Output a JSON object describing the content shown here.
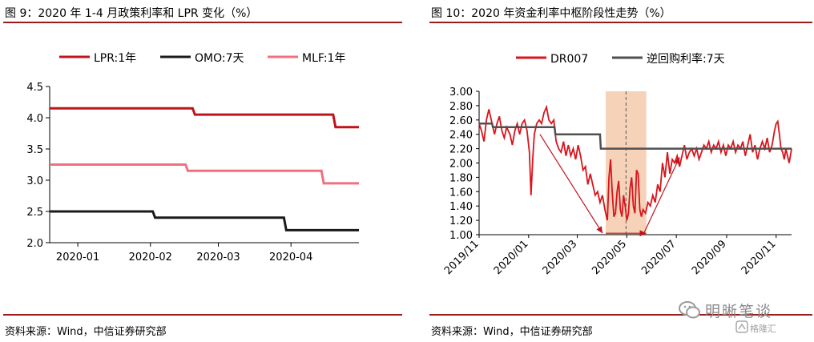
{
  "figure1": {
    "title": "图 9：2020 年 1-4 月政策利率和 LPR 变化（%）",
    "source": "资料来源：Wind，中信证券研究部"
  },
  "figure2": {
    "title": "图 10：2020 年资金利率中枢阶段性走势（%）",
    "source": "资料来源：Wind，中信证券研究部"
  },
  "watermark": {
    "name": "明晰笔谈",
    "sub": "格隆汇"
  },
  "colors": {
    "title_rule": "#9b1b1b",
    "lpr": "#c0141c",
    "omo": "#1a1a1a",
    "mlf": "#f07080",
    "dr007": "#d9141c",
    "reverse_repo": "#505050",
    "highlight": "#f6d2b8",
    "arrow": "#c0141c"
  },
  "chart_data": [
    {
      "type": "line",
      "title": "图 9：2020 年 1-4 月政策利率和 LPR 变化（%）",
      "legend_position": "top",
      "xlabel": "",
      "ylabel": "",
      "x_range": [
        "2019-12-20",
        "2020-04-30"
      ],
      "ylim": [
        2.0,
        4.5
      ],
      "yticks": [
        "2.0",
        "2.5",
        "3.0",
        "3.5",
        "4.0",
        "4.5"
      ],
      "xticks": [
        {
          "date": "2020-01-01",
          "label": "2020-01"
        },
        {
          "date": "2020-02-01",
          "label": "2020-02"
        },
        {
          "date": "2020-03-01",
          "label": "2020-03"
        },
        {
          "date": "2020-04-01",
          "label": "2020-04"
        }
      ],
      "grid": false,
      "series": [
        {
          "name": "LPR:1年",
          "color": "#c0141c",
          "points": [
            [
              "2019-12-20",
              4.15
            ],
            [
              "2020-02-19",
              4.15
            ],
            [
              "2020-02-20",
              4.05
            ],
            [
              "2020-04-19",
              4.05
            ],
            [
              "2020-04-20",
              3.85
            ],
            [
              "2020-04-30",
              3.85
            ]
          ]
        },
        {
          "name": "OMO:7天",
          "color": "#1a1a1a",
          "points": [
            [
              "2019-12-20",
              2.5
            ],
            [
              "2020-02-02",
              2.5
            ],
            [
              "2020-02-03",
              2.4
            ],
            [
              "2020-03-29",
              2.4
            ],
            [
              "2020-03-30",
              2.2
            ],
            [
              "2020-04-30",
              2.2
            ]
          ]
        },
        {
          "name": "MLF:1年",
          "color": "#f07080",
          "points": [
            [
              "2019-12-20",
              3.25
            ],
            [
              "2020-02-16",
              3.25
            ],
            [
              "2020-02-17",
              3.15
            ],
            [
              "2020-04-14",
              3.15
            ],
            [
              "2020-04-15",
              2.95
            ],
            [
              "2020-04-30",
              2.95
            ]
          ]
        }
      ]
    },
    {
      "type": "line",
      "title": "图 10：2020 年资金利率中枢阶段性走势（%）",
      "legend_position": "top",
      "xlabel": "",
      "ylabel": "",
      "x_range": [
        "2019-11-01",
        "2020-11-20"
      ],
      "ylim": [
        1.0,
        3.0
      ],
      "yticks": [
        "1.00",
        "1.20",
        "1.40",
        "1.60",
        "1.80",
        "2.00",
        "2.20",
        "2.40",
        "2.60",
        "2.80",
        "3.00"
      ],
      "xticks": [
        {
          "date": "2019-11-01",
          "label": "2019/11"
        },
        {
          "date": "2020-01-01",
          "label": "2020/01"
        },
        {
          "date": "2020-03-01",
          "label": "2020/03"
        },
        {
          "date": "2020-05-01",
          "label": "2020/05"
        },
        {
          "date": "2020-07-01",
          "label": "2020/07"
        },
        {
          "date": "2020-09-01",
          "label": "2020/09"
        },
        {
          "date": "2020-11-01",
          "label": "2020/11"
        }
      ],
      "grid": false,
      "highlight_range": [
        "2020-04-05",
        "2020-05-25"
      ],
      "vline": "2020-04-30",
      "arrows": [
        {
          "from": [
            "2020-01-15",
            2.4
          ],
          "to": [
            "2020-04-01",
            1.02
          ]
        },
        {
          "from": [
            "2020-04-05",
            1.02
          ],
          "to": [
            "2020-05-25",
            1.02
          ]
        },
        {
          "from": [
            "2020-05-22",
            1.02
          ],
          "to": [
            "2020-07-05",
            2.08
          ]
        }
      ],
      "series": [
        {
          "name": "DR007",
          "color": "#d9141c",
          "points": [
            [
              "2019-11-01",
              2.55
            ],
            [
              "2019-11-04",
              2.45
            ],
            [
              "2019-11-07",
              2.3
            ],
            [
              "2019-11-10",
              2.6
            ],
            [
              "2019-11-13",
              2.75
            ],
            [
              "2019-11-17",
              2.55
            ],
            [
              "2019-11-20",
              2.4
            ],
            [
              "2019-11-23",
              2.55
            ],
            [
              "2019-11-26",
              2.65
            ],
            [
              "2019-11-29",
              2.45
            ],
            [
              "2019-12-02",
              2.35
            ],
            [
              "2019-12-05",
              2.5
            ],
            [
              "2019-12-09",
              2.4
            ],
            [
              "2019-12-12",
              2.25
            ],
            [
              "2019-12-15",
              2.45
            ],
            [
              "2019-12-18",
              2.55
            ],
            [
              "2019-12-21",
              2.4
            ],
            [
              "2019-12-24",
              2.55
            ],
            [
              "2019-12-27",
              2.6
            ],
            [
              "2019-12-30",
              2.45
            ],
            [
              "2020-01-02",
              2.15
            ],
            [
              "2020-01-04",
              1.55
            ],
            [
              "2020-01-06",
              2.05
            ],
            [
              "2020-01-08",
              2.4
            ],
            [
              "2020-01-11",
              2.55
            ],
            [
              "2020-01-14",
              2.6
            ],
            [
              "2020-01-17",
              2.55
            ],
            [
              "2020-01-20",
              2.7
            ],
            [
              "2020-01-23",
              2.78
            ],
            [
              "2020-01-26",
              2.6
            ],
            [
              "2020-01-29",
              2.55
            ],
            [
              "2020-02-01",
              2.6
            ],
            [
              "2020-02-04",
              2.3
            ],
            [
              "2020-02-07",
              2.2
            ],
            [
              "2020-02-10",
              2.15
            ],
            [
              "2020-02-13",
              2.3
            ],
            [
              "2020-02-16",
              2.1
            ],
            [
              "2020-02-19",
              2.25
            ],
            [
              "2020-02-22",
              2.1
            ],
            [
              "2020-02-25",
              2.2
            ],
            [
              "2020-02-28",
              2.05
            ],
            [
              "2020-03-02",
              2.25
            ],
            [
              "2020-03-05",
              2.1
            ],
            [
              "2020-03-08",
              1.9
            ],
            [
              "2020-03-11",
              1.95
            ],
            [
              "2020-03-14",
              1.7
            ],
            [
              "2020-03-17",
              1.85
            ],
            [
              "2020-03-20",
              1.7
            ],
            [
              "2020-03-23",
              1.55
            ],
            [
              "2020-03-26",
              1.6
            ],
            [
              "2020-03-29",
              1.45
            ],
            [
              "2020-04-01",
              1.55
            ],
            [
              "2020-04-04",
              1.35
            ],
            [
              "2020-04-07",
              1.2
            ],
            [
              "2020-04-09",
              1.8
            ],
            [
              "2020-04-11",
              2.05
            ],
            [
              "2020-04-13",
              1.6
            ],
            [
              "2020-04-15",
              1.25
            ],
            [
              "2020-04-17",
              1.3
            ],
            [
              "2020-04-19",
              1.6
            ],
            [
              "2020-04-21",
              1.75
            ],
            [
              "2020-04-23",
              1.35
            ],
            [
              "2020-04-25",
              1.25
            ],
            [
              "2020-04-27",
              1.55
            ],
            [
              "2020-04-29",
              1.4
            ],
            [
              "2020-05-01",
              1.2
            ],
            [
              "2020-05-03",
              1.3
            ],
            [
              "2020-05-05",
              1.65
            ],
            [
              "2020-05-07",
              1.8
            ],
            [
              "2020-05-09",
              1.4
            ],
            [
              "2020-05-11",
              1.3
            ],
            [
              "2020-05-13",
              1.9
            ],
            [
              "2020-05-15",
              1.85
            ],
            [
              "2020-05-17",
              1.35
            ],
            [
              "2020-05-19",
              1.25
            ],
            [
              "2020-05-21",
              1.35
            ],
            [
              "2020-05-24",
              1.3
            ],
            [
              "2020-05-27",
              1.45
            ],
            [
              "2020-05-30",
              1.4
            ],
            [
              "2020-06-02",
              1.55
            ],
            [
              "2020-06-05",
              1.45
            ],
            [
              "2020-06-08",
              1.7
            ],
            [
              "2020-06-11",
              1.6
            ],
            [
              "2020-06-14",
              2.0
            ],
            [
              "2020-06-17",
              1.8
            ],
            [
              "2020-06-20",
              2.15
            ],
            [
              "2020-06-23",
              1.85
            ],
            [
              "2020-06-26",
              2.05
            ],
            [
              "2020-06-29",
              2.0
            ],
            [
              "2020-07-02",
              2.1
            ],
            [
              "2020-07-05",
              1.95
            ],
            [
              "2020-07-08",
              2.1
            ],
            [
              "2020-07-11",
              2.25
            ],
            [
              "2020-07-14",
              2.05
            ],
            [
              "2020-07-17",
              2.15
            ],
            [
              "2020-07-20",
              2.2
            ],
            [
              "2020-07-23",
              2.1
            ],
            [
              "2020-07-26",
              2.2
            ],
            [
              "2020-07-29",
              2.05
            ],
            [
              "2020-08-01",
              2.15
            ],
            [
              "2020-08-04",
              2.25
            ],
            [
              "2020-08-07",
              2.2
            ],
            [
              "2020-08-10",
              2.3
            ],
            [
              "2020-08-13",
              2.15
            ],
            [
              "2020-08-16",
              2.25
            ],
            [
              "2020-08-19",
              2.2
            ],
            [
              "2020-08-22",
              2.3
            ],
            [
              "2020-08-25",
              2.15
            ],
            [
              "2020-08-28",
              2.25
            ],
            [
              "2020-08-31",
              2.1
            ],
            [
              "2020-09-03",
              2.25
            ],
            [
              "2020-09-06",
              2.2
            ],
            [
              "2020-09-09",
              2.3
            ],
            [
              "2020-09-12",
              2.15
            ],
            [
              "2020-09-15",
              2.25
            ],
            [
              "2020-09-18",
              2.2
            ],
            [
              "2020-09-21",
              2.3
            ],
            [
              "2020-09-24",
              2.1
            ],
            [
              "2020-09-27",
              2.25
            ],
            [
              "2020-09-30",
              2.4
            ],
            [
              "2020-10-03",
              2.15
            ],
            [
              "2020-10-06",
              2.25
            ],
            [
              "2020-10-09",
              2.05
            ],
            [
              "2020-10-12",
              2.2
            ],
            [
              "2020-10-15",
              2.3
            ],
            [
              "2020-10-18",
              2.2
            ],
            [
              "2020-10-21",
              2.35
            ],
            [
              "2020-10-24",
              2.15
            ],
            [
              "2020-10-27",
              2.25
            ],
            [
              "2020-10-30",
              2.45
            ],
            [
              "2020-11-01",
              2.55
            ],
            [
              "2020-11-03",
              2.58
            ],
            [
              "2020-11-05",
              2.4
            ],
            [
              "2020-11-07",
              2.2
            ],
            [
              "2020-11-09",
              2.15
            ],
            [
              "2020-11-11",
              2.05
            ],
            [
              "2020-11-13",
              2.2
            ],
            [
              "2020-11-15",
              2.1
            ],
            [
              "2020-11-17",
              2.0
            ],
            [
              "2020-11-20",
              2.2
            ]
          ]
        },
        {
          "name": "逆回购利率:7天",
          "color": "#505050",
          "points": [
            [
              "2019-11-01",
              2.55
            ],
            [
              "2019-11-17",
              2.55
            ],
            [
              "2019-11-18",
              2.5
            ],
            [
              "2020-02-02",
              2.5
            ],
            [
              "2020-02-03",
              2.4
            ],
            [
              "2020-03-29",
              2.4
            ],
            [
              "2020-03-30",
              2.2
            ],
            [
              "2020-11-20",
              2.2
            ]
          ]
        }
      ]
    }
  ]
}
